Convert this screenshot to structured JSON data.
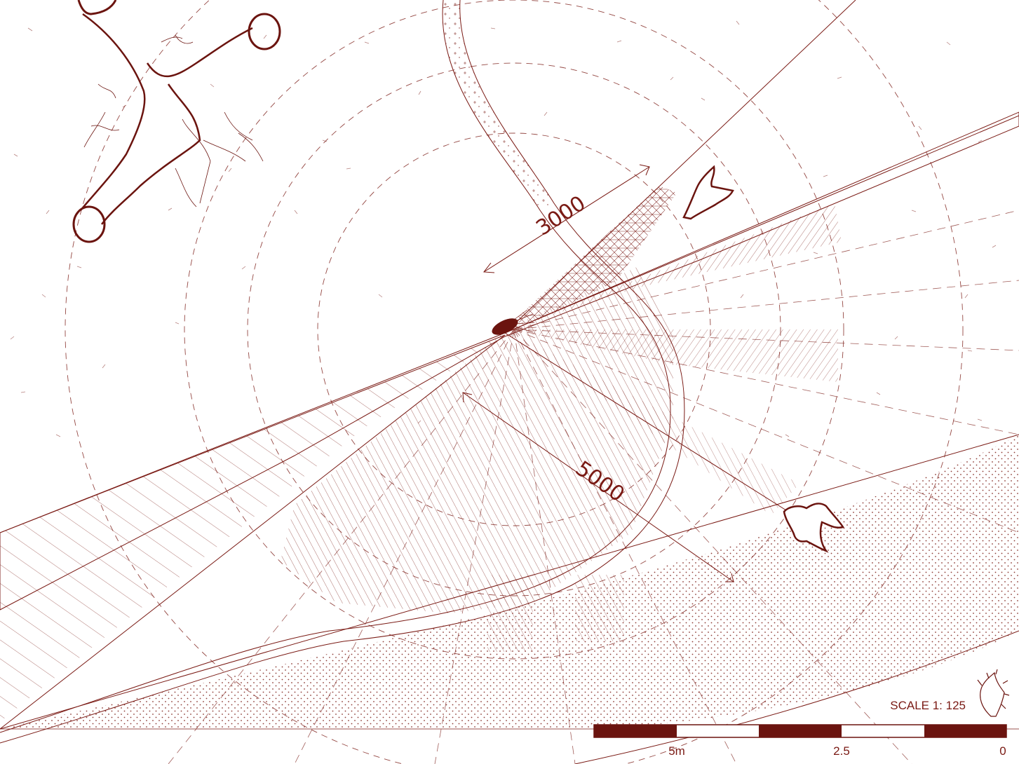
{
  "colors": {
    "ink": "#7a1a14",
    "ink_dark": "#6b140f",
    "paper": "#ffffff"
  },
  "dimensions": {
    "short": "3000",
    "long": "5000"
  },
  "scale": {
    "label": "SCALE 1: 125",
    "ticks": [
      "5m",
      "2.5",
      "0"
    ],
    "segments": 5
  },
  "icons": [
    "tree-icon",
    "person-icon",
    "north-arrow-icon"
  ]
}
